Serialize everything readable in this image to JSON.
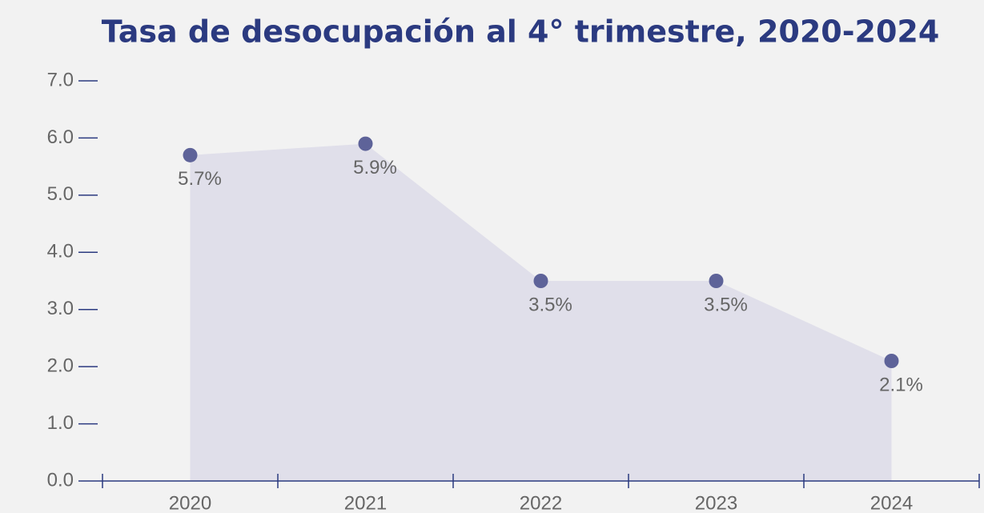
{
  "chart_data": {
    "type": "area",
    "title": "Tasa de desocupación al 4° trimestre, 2020-2024",
    "categories": [
      "2020",
      "2021",
      "2022",
      "2023",
      "2024"
    ],
    "values": [
      5.7,
      5.9,
      3.5,
      3.5,
      2.1
    ],
    "value_labels": [
      "5.7%",
      "5.9%",
      "3.5%",
      "3.5%",
      "2.1%"
    ],
    "color": "#5e6399",
    "area_color": "#e0dfea",
    "ylim": [
      0,
      7
    ],
    "yticks": [
      {
        "value": 0,
        "label": "0.0"
      },
      {
        "value": 1,
        "label": "1.0"
      },
      {
        "value": 2,
        "label": "2.0"
      },
      {
        "value": 3,
        "label": "3.0"
      },
      {
        "value": 4,
        "label": "4.0"
      },
      {
        "value": 5,
        "label": "5.0"
      },
      {
        "value": 6,
        "label": "6.0"
      },
      {
        "value": 7,
        "label": "7.0"
      }
    ]
  }
}
